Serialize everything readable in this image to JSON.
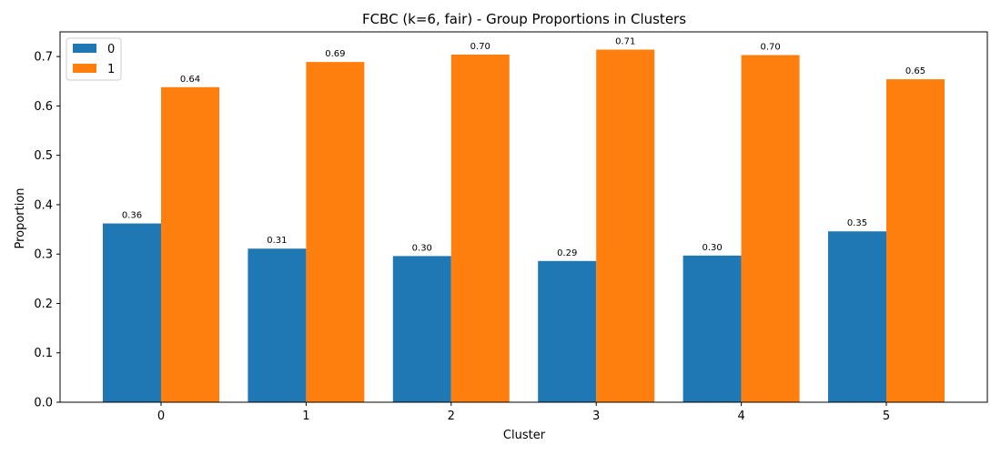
{
  "chart_data": {
    "type": "bar",
    "title": "FCBC (k=6, fair) - Group Proportions in Clusters",
    "xlabel": "Cluster",
    "ylabel": "Proportion",
    "categories": [
      "0",
      "1",
      "2",
      "3",
      "4",
      "5"
    ],
    "series": [
      {
        "name": "0",
        "color": "#1f77b4",
        "values": [
          0.362,
          0.311,
          0.296,
          0.286,
          0.297,
          0.346
        ],
        "labels": [
          "0.36",
          "0.31",
          "0.30",
          "0.29",
          "0.30",
          "0.35"
        ]
      },
      {
        "name": "1",
        "color": "#ff7f0e",
        "values": [
          0.638,
          0.689,
          0.704,
          0.714,
          0.703,
          0.654
        ],
        "labels": [
          "0.64",
          "0.69",
          "0.70",
          "0.71",
          "0.70",
          "0.65"
        ]
      }
    ],
    "ylim": [
      0,
      0.75
    ],
    "yticks": [
      "0.0",
      "0.1",
      "0.2",
      "0.3",
      "0.4",
      "0.5",
      "0.6",
      "0.7"
    ],
    "grid": false,
    "legend_position": "top-left"
  }
}
